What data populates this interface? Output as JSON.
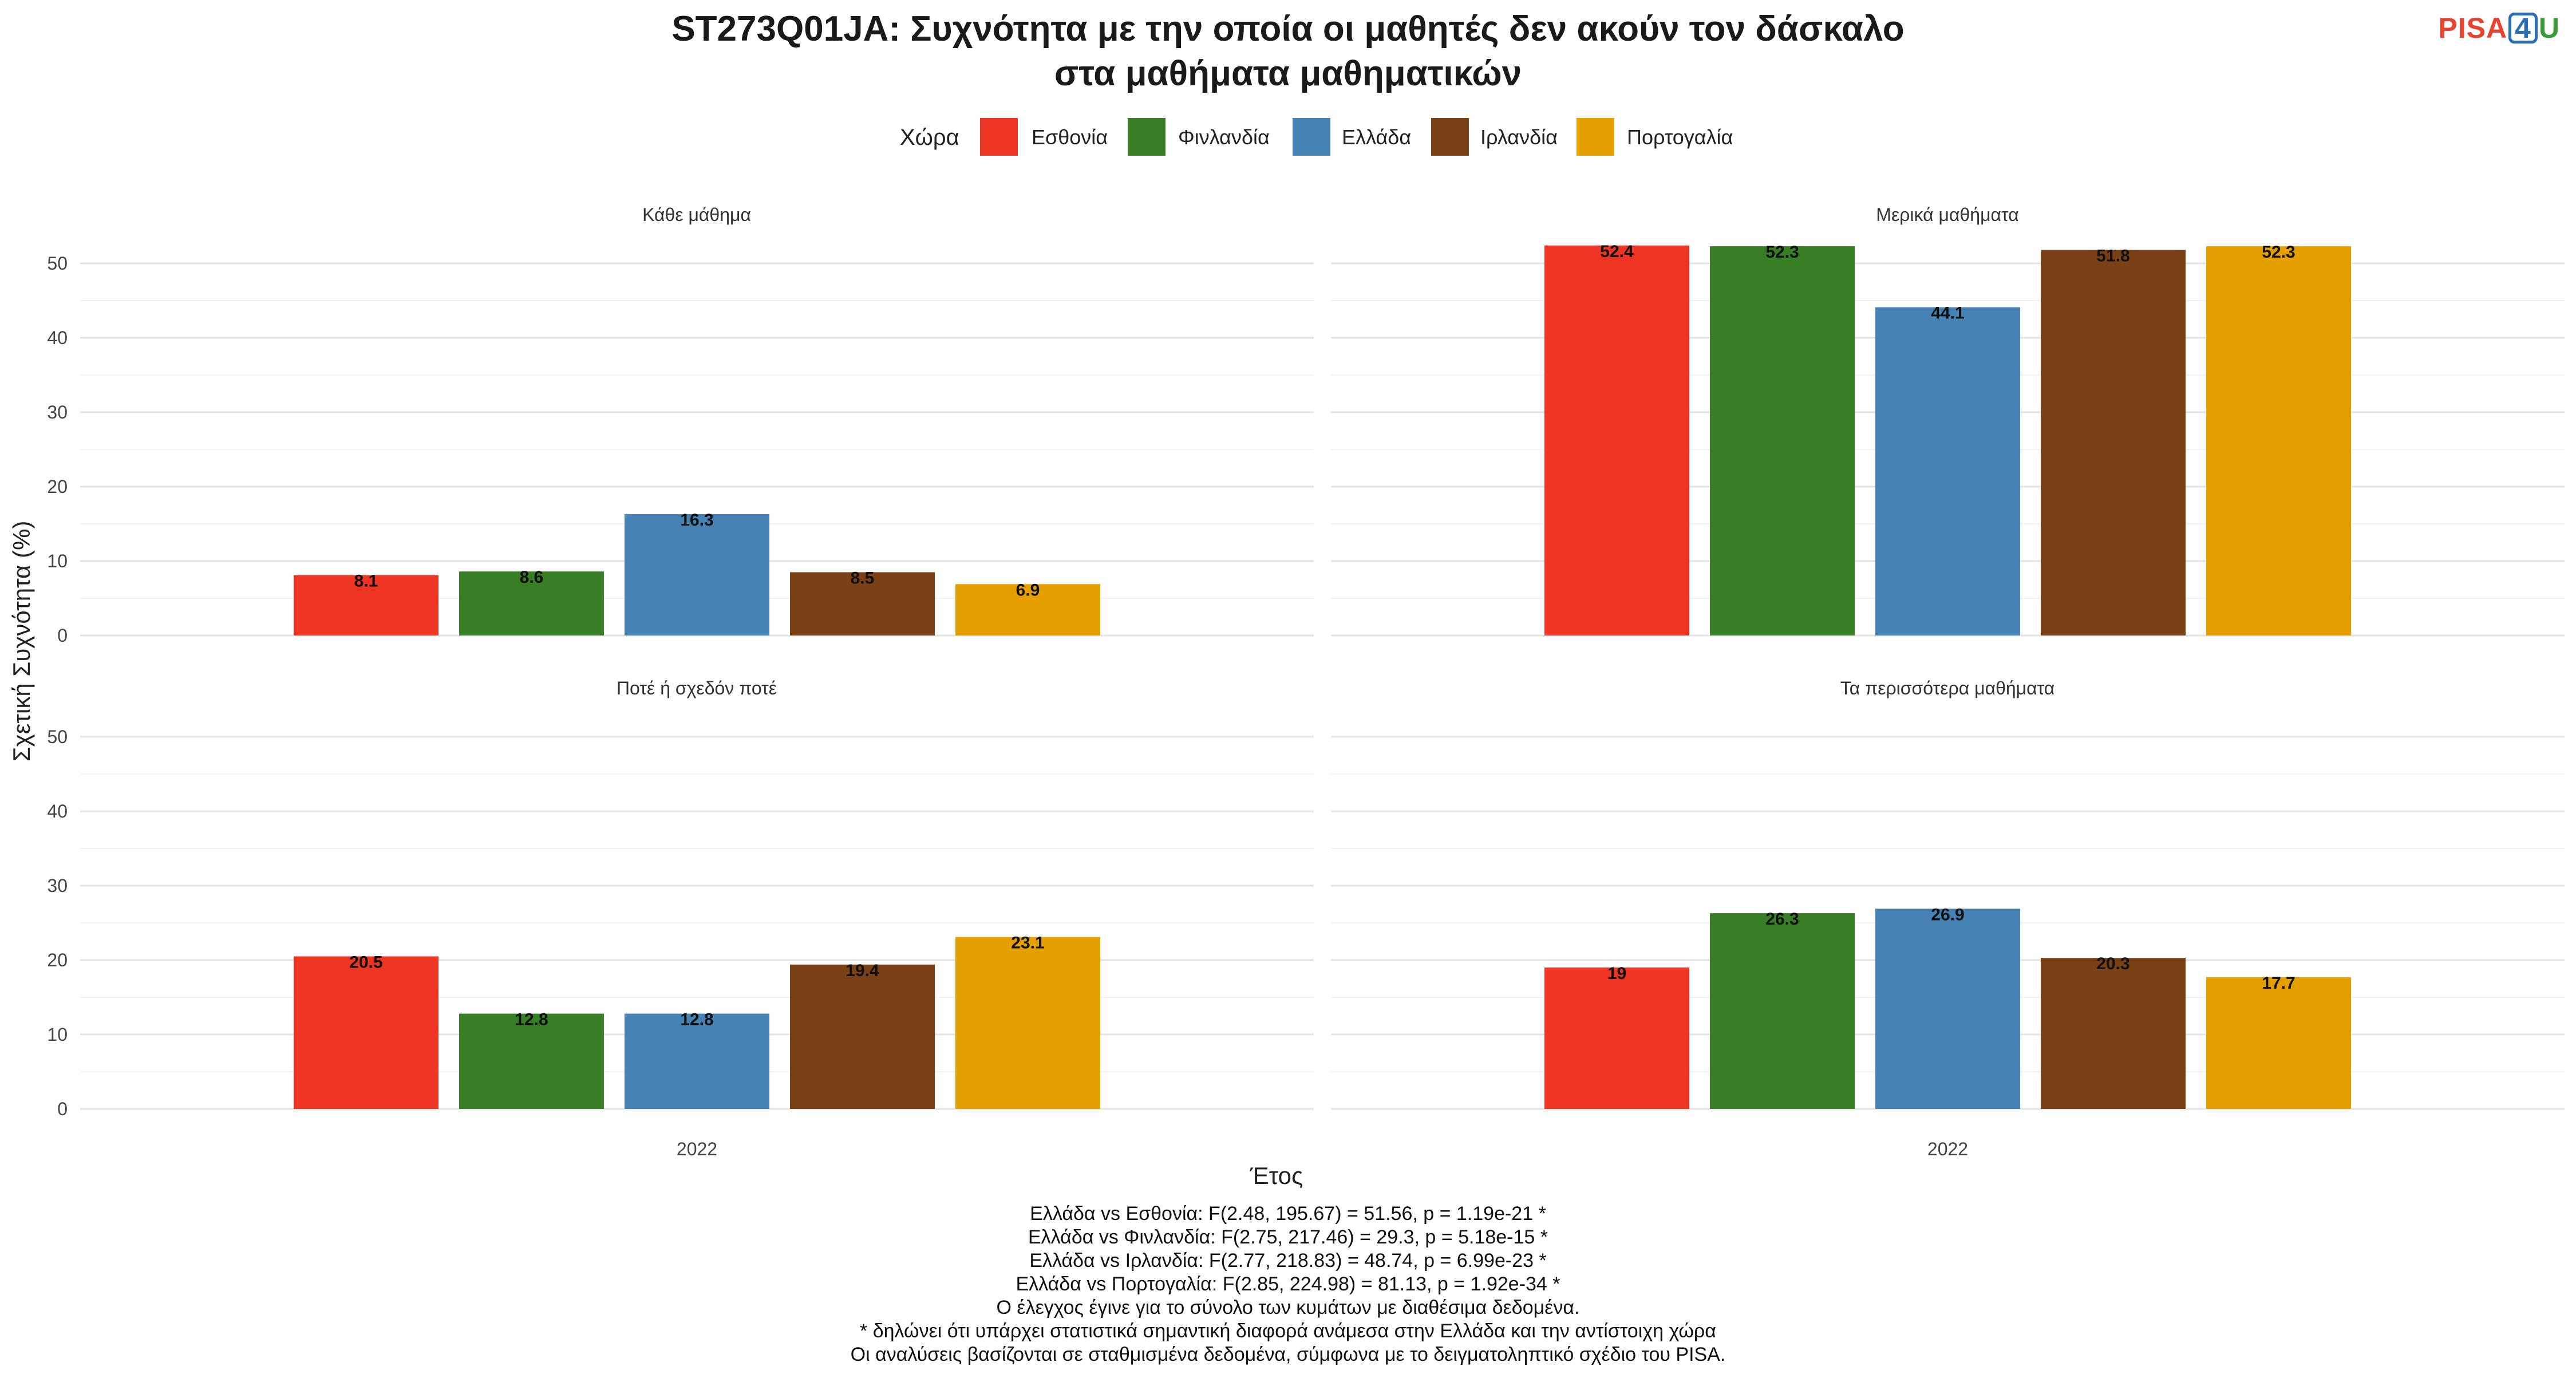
{
  "title_line1": "ST273Q01JA: Συχνότητα με την οποία οι μαθητές δεν ακούν τον δάσκαλο",
  "title_line2": "στα μαθήματα μαθηματικών",
  "logo": {
    "part1": "PISA",
    "part2": "4",
    "part3": "U"
  },
  "legend": {
    "title": "Χώρα",
    "items": [
      {
        "label": "Εσθονία",
        "color": "#EE3524"
      },
      {
        "label": "Φινλανδία",
        "color": "#387E24"
      },
      {
        "label": "Ελλάδα",
        "color": "#4682B4"
      },
      {
        "label": "Ιρλανδία",
        "color": "#7B4116"
      },
      {
        "label": "Πορτογαλία",
        "color": "#E5A000"
      }
    ]
  },
  "chart_data": {
    "type": "bar",
    "xlabel": "Έτος",
    "ylabel": "Σχετική Συχνότητα (%)",
    "ylim": [
      0,
      55
    ],
    "yticks": [
      0,
      10,
      20,
      30,
      40,
      50
    ],
    "grid": true,
    "legend_position": "top",
    "categories": [
      "2022"
    ],
    "series_names": [
      "Εσθονία",
      "Φινλανδία",
      "Ελλάδα",
      "Ιρλανδία",
      "Πορτογαλία"
    ],
    "panels": [
      {
        "title": "Κάθε μάθημα",
        "values": [
          8.1,
          8.6,
          16.3,
          8.5,
          6.9
        ],
        "labels": [
          "8.1",
          "8.6",
          "16.3",
          "8.5",
          "6.9"
        ]
      },
      {
        "title": "Μερικά μαθήματα",
        "values": [
          52.4,
          52.3,
          44.1,
          51.8,
          52.3
        ],
        "labels": [
          "52.4",
          "52.3",
          "44.1",
          "51.8",
          "52.3"
        ]
      },
      {
        "title": "Ποτέ ή σχεδόν ποτέ",
        "values": [
          20.5,
          12.8,
          12.8,
          19.4,
          23.1
        ],
        "labels": [
          "20.5",
          "12.8",
          "12.8",
          "19.4",
          "23.1"
        ]
      },
      {
        "title": "Τα περισσότερα μαθήματα",
        "values": [
          19,
          26.3,
          26.9,
          20.3,
          17.7
        ],
        "labels": [
          "19",
          "26.3",
          "26.9",
          "20.3",
          "17.7"
        ]
      }
    ]
  },
  "footer": [
    "Ελλάδα vs Εσθονία: F(2.48, 195.67) = 51.56, p = 1.19e-21 *",
    "Ελλάδα vs Φινλανδία: F(2.75, 217.46) = 29.3, p = 5.18e-15 *",
    "Ελλάδα vs Ιρλανδία: F(2.77, 218.83) = 48.74, p = 6.99e-23 *",
    "Ελλάδα vs Πορτογαλία: F(2.85, 224.98) = 81.13, p = 1.92e-34 *",
    "Ο έλεγχος έγινε για το σύνολο των κυμάτων με διαθέσιμα δεδομένα.",
    "* δηλώνει ότι υπάρχει στατιστικά σημαντική διαφορά ανάμεσα στην Ελλάδα και την αντίστοιχη χώρα",
    "Οι αναλύσεις βασίζονται σε σταθμισμένα δεδομένα, σύμφωνα με το δειγματοληπτικό σχέδιο του PISA."
  ]
}
